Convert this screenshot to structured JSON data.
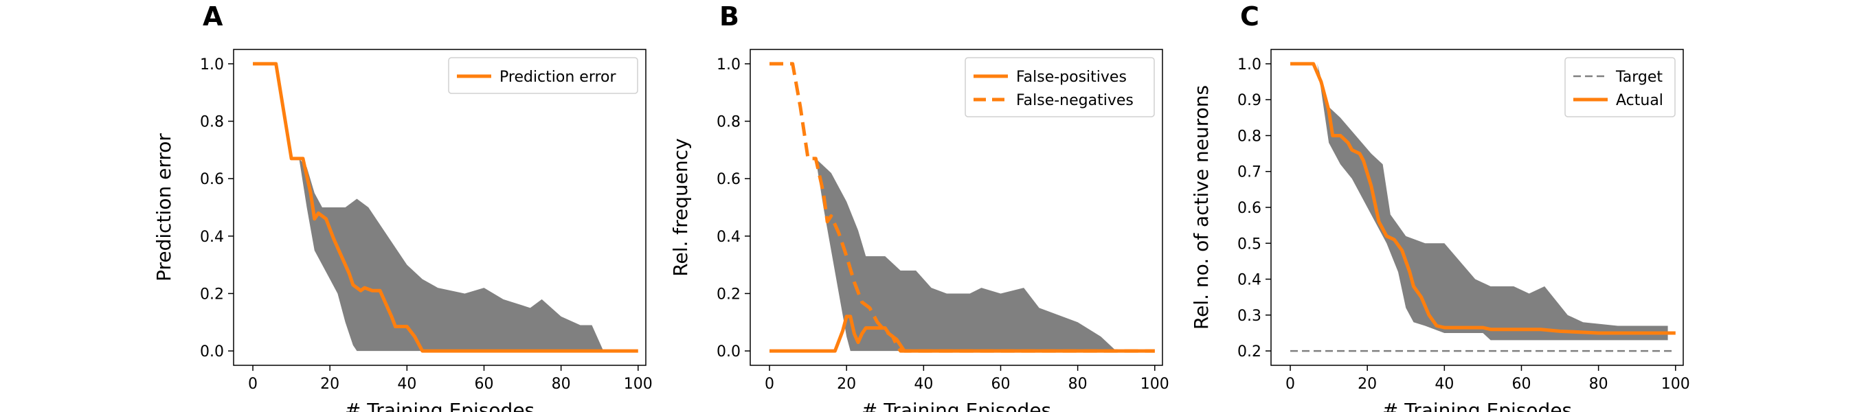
{
  "figure": {
    "colors": {
      "line": "#ff7f0e",
      "band": "#808080",
      "target": "#808080"
    }
  },
  "chart_data": [
    {
      "panel": "A",
      "type": "line",
      "xlabel": "# Training Episodes",
      "ylabel": "Prediction error",
      "xlim": [
        -5,
        102
      ],
      "ylim": [
        -0.05,
        1.05
      ],
      "xticks": [
        "0",
        "20",
        "40",
        "60",
        "80",
        "100"
      ],
      "yticks": [
        "0.0",
        "0.2",
        "0.4",
        "0.6",
        "0.8",
        "1.0"
      ],
      "legend": {
        "position": "top-right"
      },
      "band": {
        "upper": [
          [
            12,
            0.67
          ],
          [
            14,
            0.64
          ],
          [
            16,
            0.55
          ],
          [
            18,
            0.5
          ],
          [
            24,
            0.5
          ],
          [
            27,
            0.53
          ],
          [
            30,
            0.5
          ],
          [
            35,
            0.4
          ],
          [
            40,
            0.3
          ],
          [
            44,
            0.25
          ],
          [
            48,
            0.22
          ],
          [
            55,
            0.2
          ],
          [
            60,
            0.22
          ],
          [
            65,
            0.18
          ],
          [
            72,
            0.15
          ],
          [
            75,
            0.18
          ],
          [
            80,
            0.12
          ],
          [
            85,
            0.09
          ],
          [
            88,
            0.09
          ],
          [
            91,
            0
          ]
        ],
        "lower": [
          [
            12,
            0.67
          ],
          [
            14,
            0.5
          ],
          [
            16,
            0.35
          ],
          [
            18,
            0.3
          ],
          [
            20,
            0.25
          ],
          [
            22,
            0.2
          ],
          [
            24,
            0.1
          ],
          [
            26,
            0.02
          ],
          [
            27,
            0
          ],
          [
            30,
            0
          ]
        ]
      },
      "series": [
        {
          "name": "Prediction error",
          "style": "solid",
          "points": [
            [
              0,
              1.0
            ],
            [
              6,
              1.0
            ],
            [
              10,
              0.67
            ],
            [
              13,
              0.67
            ],
            [
              15,
              0.55
            ],
            [
              16,
              0.46
            ],
            [
              17,
              0.48
            ],
            [
              19,
              0.46
            ],
            [
              21,
              0.39
            ],
            [
              23,
              0.33
            ],
            [
              25,
              0.27
            ],
            [
              26,
              0.23
            ],
            [
              28,
              0.21
            ],
            [
              29,
              0.22
            ],
            [
              31,
              0.21
            ],
            [
              33,
              0.21
            ],
            [
              35,
              0.15
            ],
            [
              36,
              0.12
            ],
            [
              37,
              0.085
            ],
            [
              40,
              0.085
            ],
            [
              42,
              0.05
            ],
            [
              44,
              0.0
            ],
            [
              100,
              0.0
            ]
          ]
        }
      ]
    },
    {
      "panel": "B",
      "type": "line",
      "xlabel": "# Training Episodes",
      "ylabel": "Rel. frequency",
      "xlim": [
        -5,
        102
      ],
      "ylim": [
        -0.05,
        1.05
      ],
      "xticks": [
        "0",
        "20",
        "40",
        "60",
        "80",
        "100"
      ],
      "yticks": [
        "0.0",
        "0.2",
        "0.4",
        "0.6",
        "0.8",
        "1.0"
      ],
      "legend": {
        "position": "top-right"
      },
      "band": {
        "upper": [
          [
            12,
            0.67
          ],
          [
            16,
            0.62
          ],
          [
            20,
            0.52
          ],
          [
            23,
            0.42
          ],
          [
            25,
            0.33
          ],
          [
            30,
            0.33
          ],
          [
            34,
            0.28
          ],
          [
            38,
            0.28
          ],
          [
            42,
            0.22
          ],
          [
            46,
            0.2
          ],
          [
            52,
            0.2
          ],
          [
            55,
            0.22
          ],
          [
            60,
            0.2
          ],
          [
            66,
            0.22
          ],
          [
            70,
            0.15
          ],
          [
            80,
            0.1
          ],
          [
            86,
            0.05
          ],
          [
            90,
            0
          ]
        ],
        "lower": [
          [
            12,
            0.67
          ],
          [
            14,
            0.5
          ],
          [
            16,
            0.35
          ],
          [
            18,
            0.2
          ],
          [
            20,
            0.05
          ],
          [
            21,
            0
          ],
          [
            22,
            0
          ],
          [
            40,
            0
          ]
        ]
      },
      "series": [
        {
          "name": "False-positives",
          "style": "solid",
          "points": [
            [
              0,
              0
            ],
            [
              17,
              0
            ],
            [
              19,
              0.07
            ],
            [
              20,
              0.12
            ],
            [
              21,
              0.12
            ],
            [
              22,
              0.06
            ],
            [
              23,
              0.03
            ],
            [
              24,
              0.06
            ],
            [
              25,
              0.08
            ],
            [
              30,
              0.08
            ],
            [
              31,
              0.06
            ],
            [
              33,
              0.04
            ],
            [
              35,
              0
            ],
            [
              100,
              0
            ]
          ]
        },
        {
          "name": "False-negatives",
          "style": "dashed",
          "points": [
            [
              0,
              1.0
            ],
            [
              6,
              1.0
            ],
            [
              8,
              0.85
            ],
            [
              10,
              0.67
            ],
            [
              12,
              0.67
            ],
            [
              14,
              0.55
            ],
            [
              15,
              0.45
            ],
            [
              16,
              0.47
            ],
            [
              18,
              0.41
            ],
            [
              20,
              0.33
            ],
            [
              22,
              0.24
            ],
            [
              24,
              0.17
            ],
            [
              26,
              0.15
            ],
            [
              28,
              0.1
            ],
            [
              30,
              0.07
            ],
            [
              32,
              0.05
            ],
            [
              33,
              0.02
            ],
            [
              34,
              0
            ],
            [
              100,
              0
            ]
          ]
        }
      ]
    },
    {
      "panel": "C",
      "type": "line",
      "xlabel": "# Training Episodes",
      "ylabel": "Rel. no. of active neurons",
      "xlim": [
        -5,
        102
      ],
      "ylim": [
        0.16,
        1.04
      ],
      "xticks": [
        "0",
        "20",
        "40",
        "60",
        "80",
        "100"
      ],
      "yticks": [
        "0.2",
        "0.3",
        "0.4",
        "0.5",
        "0.6",
        "0.7",
        "0.8",
        "0.9",
        "1.0"
      ],
      "legend": {
        "position": "top-right"
      },
      "band": {
        "upper": [
          [
            7,
            1.0
          ],
          [
            10,
            0.88
          ],
          [
            13,
            0.85
          ],
          [
            17,
            0.8
          ],
          [
            21,
            0.75
          ],
          [
            24,
            0.72
          ],
          [
            26,
            0.58
          ],
          [
            30,
            0.52
          ],
          [
            35,
            0.5
          ],
          [
            40,
            0.5
          ],
          [
            44,
            0.45
          ],
          [
            48,
            0.4
          ],
          [
            52,
            0.38
          ],
          [
            58,
            0.38
          ],
          [
            62,
            0.36
          ],
          [
            66,
            0.38
          ],
          [
            72,
            0.3
          ],
          [
            76,
            0.28
          ],
          [
            85,
            0.27
          ],
          [
            98,
            0.27
          ]
        ],
        "lower": [
          [
            7,
            1.0
          ],
          [
            10,
            0.78
          ],
          [
            13,
            0.72
          ],
          [
            16,
            0.68
          ],
          [
            19,
            0.62
          ],
          [
            22,
            0.56
          ],
          [
            25,
            0.5
          ],
          [
            28,
            0.42
          ],
          [
            30,
            0.32
          ],
          [
            32,
            0.28
          ],
          [
            35,
            0.27
          ],
          [
            40,
            0.25
          ],
          [
            50,
            0.25
          ],
          [
            52,
            0.23
          ],
          [
            60,
            0.23
          ],
          [
            75,
            0.23
          ],
          [
            85,
            0.23
          ],
          [
            98,
            0.23
          ]
        ]
      },
      "series": [
        {
          "name": "Target",
          "style": "dashed-thin",
          "points": [
            [
              0,
              0.2
            ],
            [
              100,
              0.2
            ]
          ]
        },
        {
          "name": "Actual",
          "style": "solid",
          "points": [
            [
              0,
              1.0
            ],
            [
              6,
              1.0
            ],
            [
              8,
              0.95
            ],
            [
              10,
              0.87
            ],
            [
              11,
              0.8
            ],
            [
              13,
              0.8
            ],
            [
              15,
              0.78
            ],
            [
              16,
              0.76
            ],
            [
              18,
              0.75
            ],
            [
              19,
              0.73
            ],
            [
              21,
              0.66
            ],
            [
              23,
              0.56
            ],
            [
              25,
              0.52
            ],
            [
              27,
              0.51
            ],
            [
              29,
              0.48
            ],
            [
              31,
              0.42
            ],
            [
              32,
              0.38
            ],
            [
              34,
              0.35
            ],
            [
              36,
              0.3
            ],
            [
              38,
              0.27
            ],
            [
              40,
              0.265
            ],
            [
              50,
              0.265
            ],
            [
              52,
              0.26
            ],
            [
              65,
              0.26
            ],
            [
              70,
              0.255
            ],
            [
              80,
              0.25
            ],
            [
              100,
              0.25
            ]
          ]
        }
      ]
    }
  ]
}
